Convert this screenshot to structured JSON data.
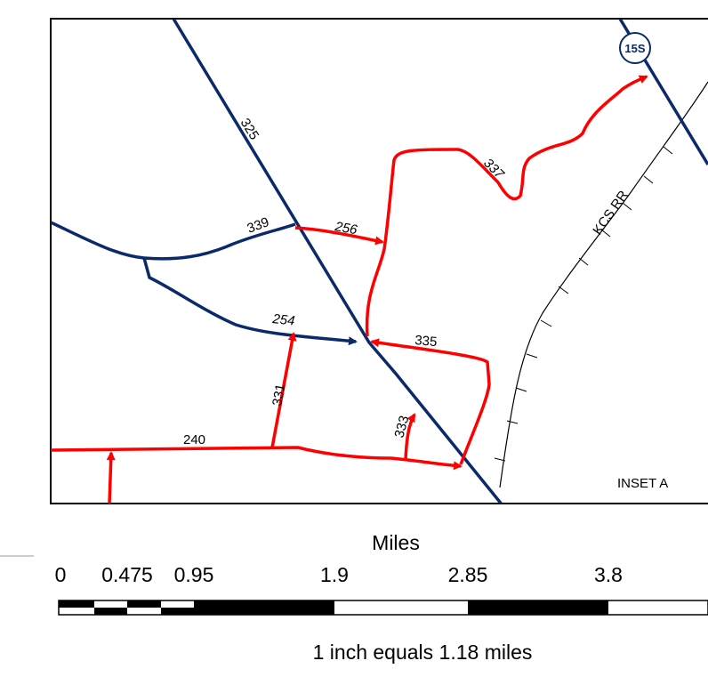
{
  "inset_label": "INSET A",
  "shield_label": "15S",
  "railroad_label": "KCS RR",
  "road_labels": {
    "r325": "325",
    "r339": "339",
    "r256": "256",
    "r337": "337",
    "r254": "254",
    "r335": "335",
    "r331": "331",
    "r333": "333",
    "r240": "240"
  },
  "scale": {
    "title": "Miles",
    "ticks": [
      "0",
      "0.475",
      "0.95",
      "1.9",
      "2.85",
      "3.8"
    ],
    "note": "1 inch equals 1.18 miles"
  },
  "colors": {
    "road_primary": "#0b2a6b",
    "road_route": "#ff0000",
    "frame": "#000000",
    "shield_fill": "#ffffff"
  }
}
